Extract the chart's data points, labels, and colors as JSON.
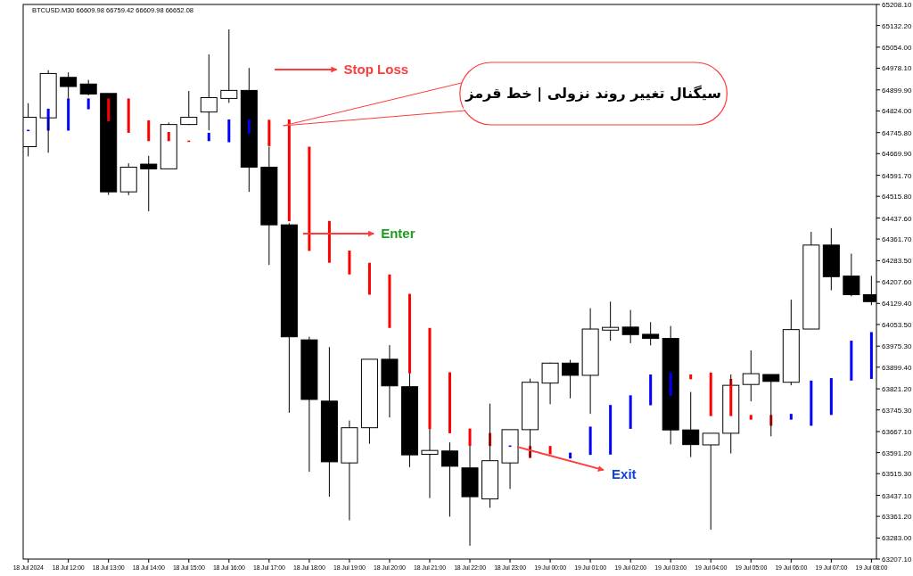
{
  "chart_data": {
    "type": "candlestick",
    "categories": [
      "18 Jul 2024",
      null,
      "18 Jul 12:00",
      null,
      "18 Jul 13:00",
      null,
      "18 Jul 14:00",
      null,
      "18 Jul 15:00",
      null,
      "18 Jul 16:00",
      null,
      "18 Jul 17:00",
      null,
      "18 Jul 18:00",
      null,
      "18 Jul 19:00",
      null,
      "18 Jul 20:00",
      null,
      "18 Jul 21:00",
      null,
      "18 Jul 22:00",
      null,
      "18 Jul 23:00",
      null,
      "19 Jul 00:00",
      null,
      "19 Jul 01:00",
      null,
      "19 Jul 02:00",
      null,
      "19 Jul 03:00",
      null,
      "19 Jul 04:00",
      null,
      "19 Jul 05:00",
      null,
      "19 Jul 06:00",
      null,
      "19 Jul 07:00",
      null,
      "19 Jul 08:00"
    ],
    "ohlc": [
      [
        64695,
        64852,
        64660,
        64801
      ],
      [
        64799,
        64971,
        64673,
        64959
      ],
      [
        64945,
        64963,
        64869,
        64912
      ],
      [
        64921,
        64936,
        64880,
        64885
      ],
      [
        64887,
        64887,
        64521,
        64532
      ],
      [
        64532,
        64635,
        64520,
        64621
      ],
      [
        64632,
        64662,
        64462,
        64615
      ],
      [
        64615,
        64782,
        64615,
        64775
      ],
      [
        64775,
        64896,
        64773,
        64801
      ],
      [
        64820,
        65028,
        64754,
        64872
      ],
      [
        64869,
        65118,
        64853,
        64898
      ],
      [
        64898,
        64979,
        64532,
        64621
      ],
      [
        64621,
        64695,
        64268,
        64413
      ],
      [
        64413,
        64419,
        63735,
        64009
      ],
      [
        63998,
        64009,
        63522,
        63783
      ],
      [
        63777,
        63972,
        63432,
        63558
      ],
      [
        63554,
        63707,
        63347,
        63681
      ],
      [
        63681,
        63928,
        63623,
        63928
      ],
      [
        63928,
        63979,
        63718,
        63832
      ],
      [
        63829,
        63877,
        63539,
        63583
      ],
      [
        63585,
        63676,
        63427,
        63599
      ],
      [
        63597,
        63628,
        63360,
        63542
      ],
      [
        63536,
        63615,
        63255,
        63432
      ],
      [
        63424,
        63768,
        63392,
        63562
      ],
      [
        63554,
        63674,
        63460,
        63674
      ],
      [
        63674,
        63858,
        63572,
        63845
      ],
      [
        63842,
        63916,
        63766,
        63914
      ],
      [
        63914,
        63926,
        63787,
        63870
      ],
      [
        63870,
        64112,
        63731,
        64037
      ],
      [
        64033,
        64136,
        63995,
        64043
      ],
      [
        64044,
        64106,
        63986,
        64017
      ],
      [
        64018,
        64062,
        63978,
        64003
      ],
      [
        64003,
        64048,
        63621,
        63673
      ],
      [
        63673,
        63810,
        63575,
        63620
      ],
      [
        63619,
        63661,
        63313,
        63661
      ],
      [
        63661,
        63873,
        63588,
        63834
      ],
      [
        63837,
        63960,
        63776,
        63876
      ],
      [
        63873,
        63873,
        63650,
        63848
      ],
      [
        63845,
        64143,
        63834,
        64035
      ],
      [
        64037,
        64388,
        64037,
        64340
      ],
      [
        64340,
        64401,
        64177,
        64226
      ],
      [
        64228,
        64309,
        64155,
        64161
      ],
      [
        64161,
        64229,
        64123,
        64136
      ]
    ],
    "series": [
      {
        "type": "bar",
        "color": "#ff0000",
        "base": [
          null,
          null,
          null,
          null,
          64787,
          64745,
          64715,
          64715,
          64712,
          null,
          null,
          null,
          64697,
          64426,
          64319,
          64276,
          64234,
          64161,
          64041,
          63877,
          63676,
          63661,
          63615,
          63615,
          null,
          63572,
          63585,
          null,
          null,
          null,
          null,
          null,
          null,
          63856,
          63723,
          63723,
          63710,
          63688,
          null,
          null,
          null,
          null,
          null
        ],
        "values": [
          null,
          null,
          null,
          null,
          82,
          124,
          75,
          33,
          5,
          null,
          null,
          null,
          95,
          367,
          376,
          151,
          86,
          115,
          193,
          287,
          365,
          220,
          63,
          47,
          null,
          43,
          30,
          null,
          null,
          null,
          null,
          null,
          null,
          17,
          157,
          134,
          17,
          39,
          null,
          null,
          null,
          null,
          null
        ]
      },
      {
        "type": "bar",
        "color": "#0000ff",
        "base": [
          64751,
          64753,
          64753,
          64830,
          null,
          null,
          null,
          null,
          null,
          64715,
          64711,
          64742,
          null,
          null,
          null,
          null,
          null,
          null,
          null,
          null,
          null,
          null,
          null,
          null,
          63612,
          null,
          null,
          63570,
          63583,
          63584,
          63677,
          63762,
          63796,
          null,
          null,
          null,
          null,
          null,
          63710,
          63688,
          63727,
          63851,
          63857
        ],
        "values": [
          5,
          79,
          116,
          39,
          null,
          null,
          null,
          null,
          null,
          30,
          82,
          51,
          null,
          null,
          null,
          null,
          null,
          null,
          null,
          null,
          null,
          null,
          null,
          null,
          5,
          null,
          null,
          21,
          102,
          179,
          121,
          111,
          84,
          null,
          null,
          null,
          null,
          null,
          21,
          163,
          133,
          144,
          169
        ]
      }
    ],
    "ylim": [
      63207.1,
      65208.1
    ],
    "yticks": [
      {
        "value": 63207.1,
        "label": "63207.10"
      },
      {
        "value": 63283.0,
        "label": "63283.00"
      },
      {
        "value": 63361.2,
        "label": "63361.20"
      },
      {
        "value": 63437.1,
        "label": "63437.10"
      },
      {
        "value": 63515.3,
        "label": "63515.30"
      },
      {
        "value": 63591.2,
        "label": "63591.20"
      },
      {
        "value": 63667.1,
        "label": "63667.10"
      },
      {
        "value": 63745.3,
        "label": "63745.30"
      },
      {
        "value": 63821.2,
        "label": "63821.20"
      },
      {
        "value": 63899.4,
        "label": "63899.40"
      },
      {
        "value": 63975.3,
        "label": "63975.30"
      },
      {
        "value": 64053.5,
        "label": "64053.50"
      },
      {
        "value": 64129.4,
        "label": "64129.40"
      },
      {
        "value": 64207.6,
        "label": "64207.60"
      },
      {
        "value": 64283.5,
        "label": "64283.50"
      },
      {
        "value": 64361.7,
        "label": "64361.70"
      },
      {
        "value": 64437.6,
        "label": "64437.60"
      },
      {
        "value": 64515.8,
        "label": "64515.80"
      },
      {
        "value": 64591.7,
        "label": "64591.70"
      },
      {
        "value": 64669.9,
        "label": "64669.90"
      },
      {
        "value": 64745.8,
        "label": "64745.80"
      },
      {
        "value": 64824.0,
        "label": "64824.00"
      },
      {
        "value": 64899.9,
        "label": "64899.90"
      },
      {
        "value": 64978.1,
        "label": "64978.10"
      },
      {
        "value": 65054.0,
        "label": "65054.00"
      },
      {
        "value": 65132.2,
        "label": "65132.20"
      },
      {
        "value": 65208.1,
        "label": "65208.10"
      }
    ],
    "annotations": [
      "BTCUSD.M30 66609.98 66759.42 66609.98 66652.08",
      "سیگنال تغییر روند نزولی | خط قرمز",
      "Stop Loss",
      "Enter",
      {
        "text": "Exit",
        "x": "18 Jul 23:00",
        "y": 63612
      }
    ]
  }
}
